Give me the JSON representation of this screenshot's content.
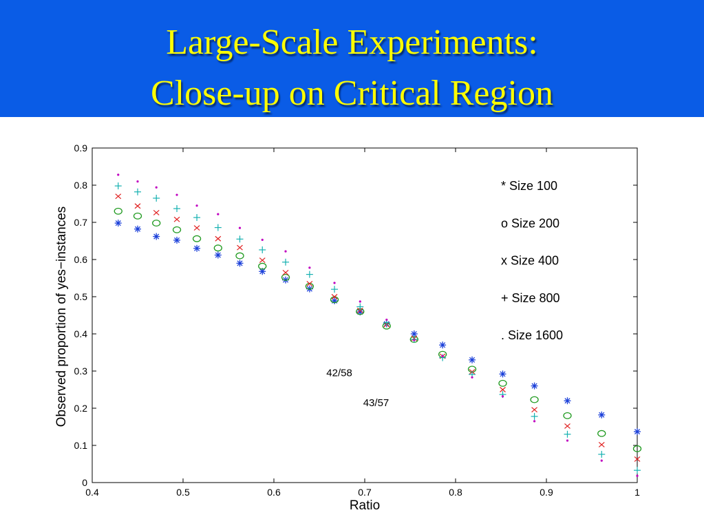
{
  "slide": {
    "title_line1": "Large-Scale Experiments:",
    "title_line2": "Close-up on Critical Region",
    "header_color": "#0a5ce6",
    "title_color": "#ffff00"
  },
  "chart_data": {
    "type": "scatter",
    "title": "",
    "xlabel": "Ratio",
    "ylabel": "Observed proportion of yes−instances",
    "xlim": [
      0.4,
      1.0
    ],
    "ylim": [
      0,
      0.9
    ],
    "xticks": [
      "0.4",
      "0.5",
      "0.6",
      "0.7",
      "0.8",
      "0.9",
      "1"
    ],
    "yticks": [
      "0",
      "0.1",
      "0.2",
      "0.3",
      "0.4",
      "0.5",
      "0.6",
      "0.7",
      "0.8",
      "0.9"
    ],
    "grid": false,
    "legend_position": "top-right",
    "series": [
      {
        "name": "* Size 100",
        "marker": "asterisk",
        "color": "#1a3fd9",
        "x": [
          0.4286,
          0.45,
          0.4706,
          0.4932,
          0.5152,
          0.5385,
          0.5625,
          0.5873,
          0.6129,
          0.6393,
          0.6667,
          0.6949,
          0.7241,
          0.7544,
          0.7857,
          0.8182,
          0.8519,
          0.8868,
          0.9231,
          0.9608,
          1.0
        ],
        "y": [
          0.698,
          0.682,
          0.662,
          0.652,
          0.63,
          0.612,
          0.59,
          0.568,
          0.545,
          0.521,
          0.489,
          0.459,
          0.427,
          0.4,
          0.37,
          0.33,
          0.292,
          0.26,
          0.22,
          0.182,
          0.137
        ]
      },
      {
        "name": "o Size 200",
        "marker": "circle",
        "color": "#1f9a1f",
        "x": [
          0.4286,
          0.45,
          0.4706,
          0.4932,
          0.5152,
          0.5385,
          0.5625,
          0.5873,
          0.6129,
          0.6393,
          0.6667,
          0.6949,
          0.7241,
          0.7544,
          0.7857,
          0.8182,
          0.8519,
          0.8868,
          0.9231,
          0.9608,
          1.0
        ],
        "y": [
          0.73,
          0.717,
          0.698,
          0.68,
          0.656,
          0.631,
          0.61,
          0.582,
          0.552,
          0.528,
          0.492,
          0.46,
          0.421,
          0.385,
          0.345,
          0.305,
          0.267,
          0.223,
          0.18,
          0.132,
          0.091
        ]
      },
      {
        "name": "x Size 400",
        "marker": "x",
        "color": "#e02020",
        "x": [
          0.4286,
          0.45,
          0.4706,
          0.4932,
          0.5152,
          0.5385,
          0.5625,
          0.5873,
          0.6129,
          0.6393,
          0.6667,
          0.6949,
          0.7241,
          0.7544,
          0.7857,
          0.8182,
          0.8519,
          0.8868,
          0.9231,
          0.9608,
          1.0
        ],
        "y": [
          0.77,
          0.744,
          0.726,
          0.708,
          0.685,
          0.656,
          0.632,
          0.598,
          0.565,
          0.535,
          0.5,
          0.463,
          0.425,
          0.388,
          0.34,
          0.298,
          0.25,
          0.196,
          0.152,
          0.102,
          0.063
        ]
      },
      {
        "name": "+ Size 800",
        "marker": "plus",
        "color": "#14b0b0",
        "x": [
          0.4286,
          0.45,
          0.4706,
          0.4932,
          0.5152,
          0.5385,
          0.5625,
          0.5873,
          0.6129,
          0.6393,
          0.6667,
          0.6949,
          0.7241,
          0.7544,
          0.7857,
          0.8182,
          0.8519,
          0.8868,
          0.9231,
          0.9608,
          1.0
        ],
        "y": [
          0.798,
          0.782,
          0.765,
          0.737,
          0.713,
          0.686,
          0.655,
          0.626,
          0.593,
          0.56,
          0.52,
          0.473,
          0.43,
          0.385,
          0.336,
          0.291,
          0.237,
          0.178,
          0.13,
          0.076,
          0.033
        ]
      },
      {
        "name": ". Size 1600",
        "marker": "dot",
        "color": "#c000c0",
        "x": [
          0.4286,
          0.45,
          0.4706,
          0.4932,
          0.5152,
          0.5385,
          0.5625,
          0.5873,
          0.6129,
          0.6393,
          0.6667,
          0.6949,
          0.7241,
          0.7544,
          0.7857,
          0.8182,
          0.8519,
          0.8868,
          0.9231,
          0.9608,
          1.0
        ],
        "y": [
          0.828,
          0.81,
          0.794,
          0.774,
          0.745,
          0.722,
          0.685,
          0.653,
          0.622,
          0.578,
          0.537,
          0.487,
          0.438,
          0.383,
          0.34,
          0.283,
          0.232,
          0.165,
          0.113,
          0.059,
          0.018
        ]
      }
    ],
    "annotations": [
      {
        "text": "42/58",
        "x": 0.672,
        "y": 0.295
      },
      {
        "text": "43/57",
        "x": 0.7125,
        "y": 0.215
      }
    ]
  }
}
